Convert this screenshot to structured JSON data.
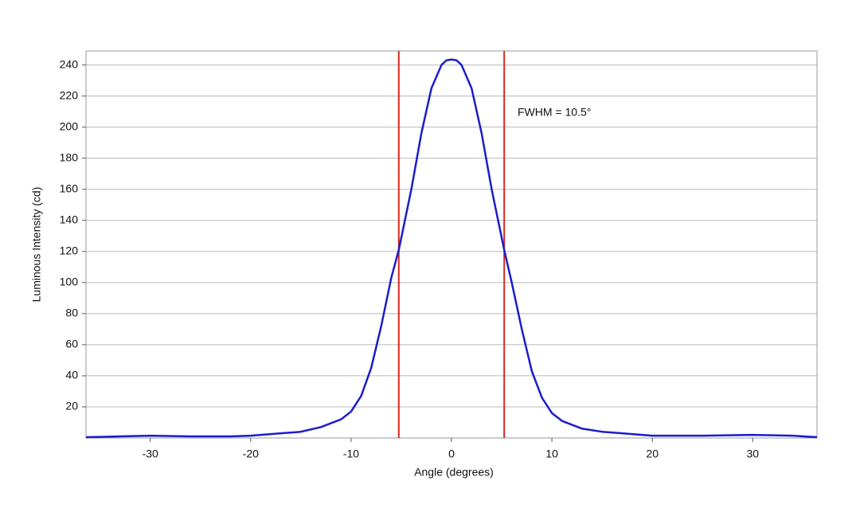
{
  "chart_data": {
    "type": "line",
    "xlabel": "Angle (degrees)",
    "ylabel": "Luminous Intensity (cd)",
    "annotation": "FWHM = 10.5°",
    "x": [
      -36.4,
      -33,
      -30,
      -26,
      -22,
      -20,
      -17,
      -15,
      -13,
      -11,
      -10,
      -9,
      -8,
      -7,
      -6,
      -5.25,
      -4,
      -3,
      -2,
      -1,
      -0.5,
      0,
      0.5,
      1,
      2,
      3,
      4,
      5.25,
      6,
      7,
      8,
      9,
      10,
      11,
      13,
      15,
      17,
      20,
      25,
      30,
      34,
      36.4
    ],
    "series": [
      {
        "color": "#1c1ccc",
        "values": [
          0.5,
          1,
          1.5,
          1,
          1,
          1.5,
          3,
          4,
          7,
          12,
          17,
          27,
          45,
          72,
          103,
          121,
          160,
          196,
          225,
          240,
          243,
          243.5,
          243,
          240,
          225,
          196,
          160,
          121,
          100,
          70,
          43,
          26,
          16,
          11,
          6,
          4,
          3,
          1.5,
          1.5,
          2,
          1.5,
          0.5
        ]
      }
    ],
    "vlines": [
      -5.25,
      5.25
    ],
    "vline_color": "#d42a1e",
    "xlim": [
      -36.4,
      36.4
    ],
    "ylim": [
      0,
      249
    ],
    "xticks": [
      -30,
      -20,
      -10,
      0,
      10,
      20,
      30
    ],
    "yticks": [
      20,
      40,
      60,
      80,
      100,
      120,
      140,
      160,
      180,
      200,
      220,
      240
    ],
    "grid": true
  }
}
